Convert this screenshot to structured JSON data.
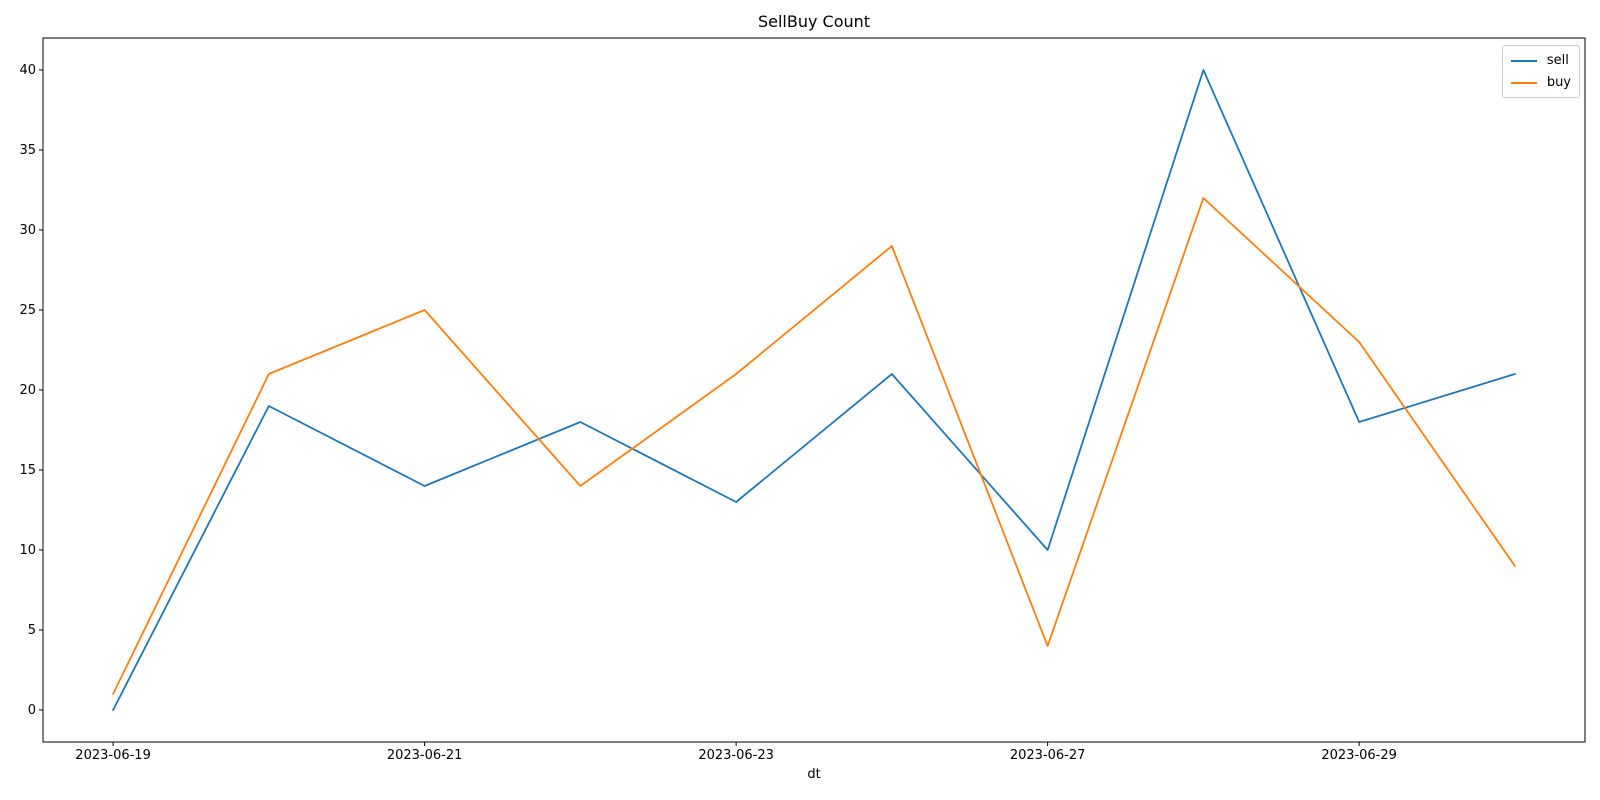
{
  "title": "SellBuy Count",
  "chart_data": {
    "type": "line",
    "title": "SellBuy Count",
    "xlabel": "dt",
    "ylabel": "",
    "x": [
      0,
      1,
      2,
      3,
      4,
      5,
      6,
      7,
      8,
      9
    ],
    "series": [
      {
        "name": "sell",
        "color": "#1f77b4",
        "values": [
          0,
          19,
          14,
          18,
          13,
          21,
          10,
          40,
          18,
          21
        ]
      },
      {
        "name": "buy",
        "color": "#ff7f0e",
        "values": [
          1,
          21,
          25,
          14,
          21,
          29,
          4,
          32,
          23,
          9
        ]
      }
    ],
    "x_ticks": [
      {
        "pos": 0,
        "label": "2023-06-19"
      },
      {
        "pos": 2,
        "label": "2023-06-21"
      },
      {
        "pos": 4,
        "label": "2023-06-23"
      },
      {
        "pos": 6,
        "label": "2023-06-27"
      },
      {
        "pos": 8,
        "label": "2023-06-29"
      }
    ],
    "y_ticks": [
      0,
      5,
      10,
      15,
      20,
      25,
      30,
      35,
      40
    ],
    "xlim": [
      -0.45,
      9.45
    ],
    "ylim": [
      -2,
      42
    ],
    "grid": false,
    "legend": {
      "position": "top-right",
      "entries": [
        "sell",
        "buy"
      ]
    }
  },
  "colors": {
    "sell_line": "#1f77b4",
    "buy_line": "#ff7f0e",
    "spine": "#000000",
    "legend_border": "#cccccc",
    "background": "#ffffff"
  }
}
